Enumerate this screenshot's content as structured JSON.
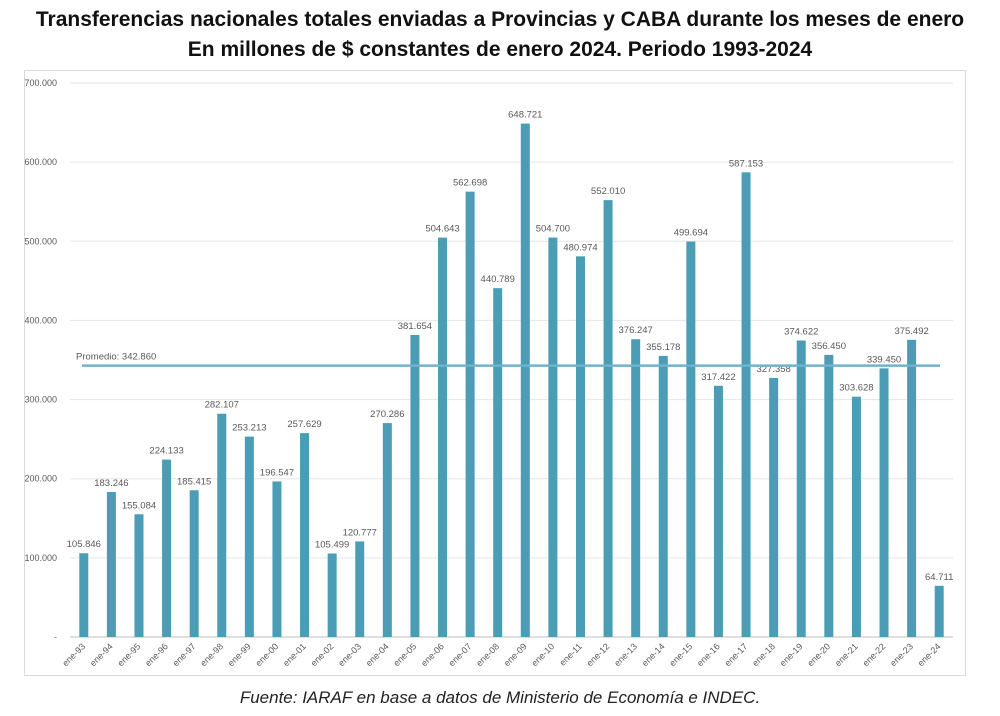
{
  "title_line1": "Transferencias nacionales totales enviadas a Provincias y CABA durante los meses de enero",
  "title_line2": "En millones de $ constantes de enero 2024. Periodo 1993-2024",
  "source": "Fuente: IARAF en base a datos de Ministerio de Economía e INDEC.",
  "colors": {
    "bar": "#4a9db5",
    "average_line": "#6fb3cc",
    "grid": "#e6e6e6",
    "text": "#595959"
  },
  "chart_data": {
    "type": "bar",
    "title": "Transferencias nacionales totales enviadas a Provincias y CABA durante los meses de enero",
    "subtitle": "En millones de $ constantes de enero 2024. Periodo 1993-2024",
    "xlabel": "",
    "ylabel": "",
    "ylim": [
      0,
      700000
    ],
    "yticks": [
      0,
      100000,
      200000,
      300000,
      400000,
      500000,
      600000,
      700000
    ],
    "ytick_labels": [
      "-",
      "100.000",
      "200.000",
      "300.000",
      "400.000",
      "500.000",
      "600.000",
      "700.000"
    ],
    "grid": true,
    "categories": [
      "ene-93",
      "ene-94",
      "ene-95",
      "ene-96",
      "ene-97",
      "ene-98",
      "ene-99",
      "ene-00",
      "ene-01",
      "ene-02",
      "ene-03",
      "ene-04",
      "ene-05",
      "ene-06",
      "ene-07",
      "ene-08",
      "ene-09",
      "ene-10",
      "ene-11",
      "ene-12",
      "ene-13",
      "ene-14",
      "ene-15",
      "ene-16",
      "ene-17",
      "ene-18",
      "ene-19",
      "ene-20",
      "ene-21",
      "ene-22",
      "ene-23",
      "ene-24"
    ],
    "values": [
      105846,
      183246,
      155084,
      224133,
      185415,
      282107,
      253213,
      196547,
      257629,
      105499,
      120777,
      270286,
      381654,
      504643,
      562698,
      440789,
      648721,
      504700,
      480974,
      552010,
      376247,
      355178,
      499694,
      317422,
      587153,
      327358,
      374622,
      356450,
      303628,
      339450,
      375492,
      64711
    ],
    "value_labels": [
      "105.846",
      "183.246",
      "155.084",
      "224.133",
      "185.415",
      "282.107",
      "253.213",
      "196.547",
      "257.629",
      "105.499",
      "120.777",
      "270.286",
      "381.654",
      "504.643",
      "562.698",
      "440.789",
      "648.721",
      "504.700",
      "480.974",
      "552.010",
      "376.247",
      "355.178",
      "499.694",
      "317.422",
      "587.153",
      "327.358",
      "374.622",
      "356.450",
      "303.628",
      "339.450",
      "375.492",
      "64.711"
    ],
    "average": {
      "value": 342860,
      "label": "Promedio: 342.860"
    }
  }
}
